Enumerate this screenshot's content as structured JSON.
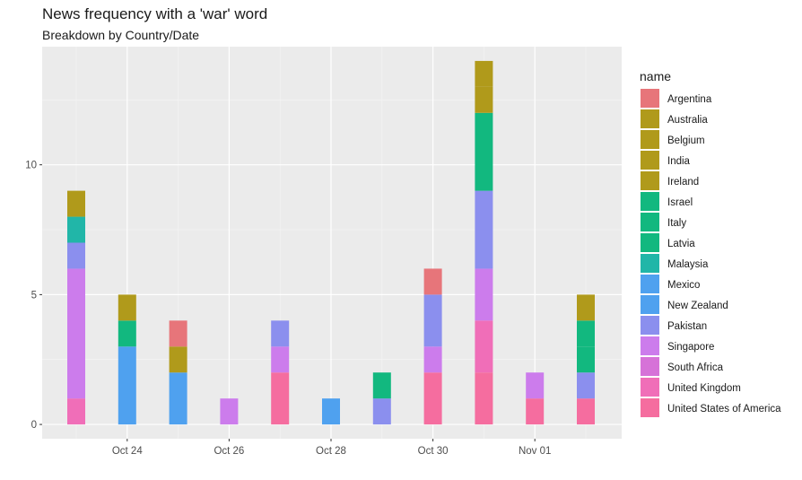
{
  "chart_data": {
    "type": "bar",
    "stacked": true,
    "title": "News frequency with a 'war' word",
    "subtitle": "Breakdown by Country/Date",
    "xlabel": "",
    "ylabel": "",
    "ylim": [
      -0.55,
      14.55
    ],
    "y_ticks": [
      0,
      5,
      10
    ],
    "x_ticks": [
      "Oct 24",
      "Oct 26",
      "Oct 28",
      "Oct 30",
      "Nov 01"
    ],
    "grid": true,
    "legend": {
      "title": "name",
      "position": "right"
    },
    "categories": [
      "Oct 23",
      "Oct 24",
      "Oct 25",
      "Oct 26",
      "Oct 27",
      "Oct 28",
      "Oct 29",
      "Oct 30",
      "Oct 31",
      "Nov 01",
      "Nov 02"
    ],
    "series": [
      {
        "name": "Argentina",
        "color": "#E7757A",
        "values": [
          0,
          0,
          1,
          0,
          0,
          0,
          0,
          1,
          0,
          0,
          0
        ]
      },
      {
        "name": "Australia",
        "color": "#B09A1B",
        "values": [
          1,
          1,
          0,
          0,
          0,
          0,
          0,
          0,
          1,
          0,
          1
        ]
      },
      {
        "name": "Belgium",
        "color": "#B09A1B",
        "values": [
          0,
          0,
          1,
          0,
          0,
          0,
          0,
          0,
          1,
          0,
          0
        ]
      },
      {
        "name": "India",
        "color": "#B09A1B",
        "values": [
          0,
          0,
          0,
          0,
          0,
          0,
          0,
          0,
          0,
          0,
          0
        ]
      },
      {
        "name": "Ireland",
        "color": "#B09A1B",
        "values": [
          0,
          0,
          0,
          0,
          0,
          0,
          0,
          0,
          0,
          0,
          0
        ]
      },
      {
        "name": "Israel",
        "color": "#12B87F",
        "values": [
          0,
          1,
          0,
          0,
          0,
          0,
          0,
          0,
          0,
          0,
          0
        ]
      },
      {
        "name": "Italy",
        "color": "#12B87F",
        "values": [
          0,
          0,
          0,
          0,
          0,
          0,
          1,
          0,
          3,
          0,
          1
        ]
      },
      {
        "name": "Latvia",
        "color": "#12B87F",
        "values": [
          0,
          0,
          0,
          0,
          0,
          0,
          0,
          0,
          0,
          0,
          1
        ]
      },
      {
        "name": "Malaysia",
        "color": "#21B6A8",
        "values": [
          1,
          0,
          0,
          0,
          0,
          0,
          0,
          0,
          0,
          0,
          0
        ]
      },
      {
        "name": "Mexico",
        "color": "#4FA1EF",
        "values": [
          0,
          3,
          2,
          0,
          0,
          1,
          0,
          0,
          0,
          0,
          0
        ]
      },
      {
        "name": "New Zealand",
        "color": "#4FA1EF",
        "values": [
          0,
          0,
          0,
          0,
          0,
          0,
          0,
          0,
          0,
          0,
          0
        ]
      },
      {
        "name": "Pakistan",
        "color": "#8B8FEE",
        "values": [
          1,
          0,
          0,
          0,
          1,
          0,
          1,
          2,
          3,
          0,
          1
        ]
      },
      {
        "name": "Singapore",
        "color": "#CC7CEC",
        "values": [
          5,
          0,
          0,
          1,
          1,
          0,
          0,
          1,
          2,
          1,
          0
        ]
      },
      {
        "name": "South Africa",
        "color": "#D672D8",
        "values": [
          0,
          0,
          0,
          0,
          0,
          0,
          0,
          0,
          0,
          0,
          0
        ]
      },
      {
        "name": "United Kingdom",
        "color": "#F06EB8",
        "values": [
          1,
          0,
          0,
          0,
          0,
          0,
          0,
          0,
          2,
          0,
          0
        ]
      },
      {
        "name": "United States of America",
        "color": "#F56D9F",
        "values": [
          0,
          0,
          0,
          0,
          2,
          0,
          0,
          2,
          2,
          1,
          1
        ]
      }
    ]
  }
}
